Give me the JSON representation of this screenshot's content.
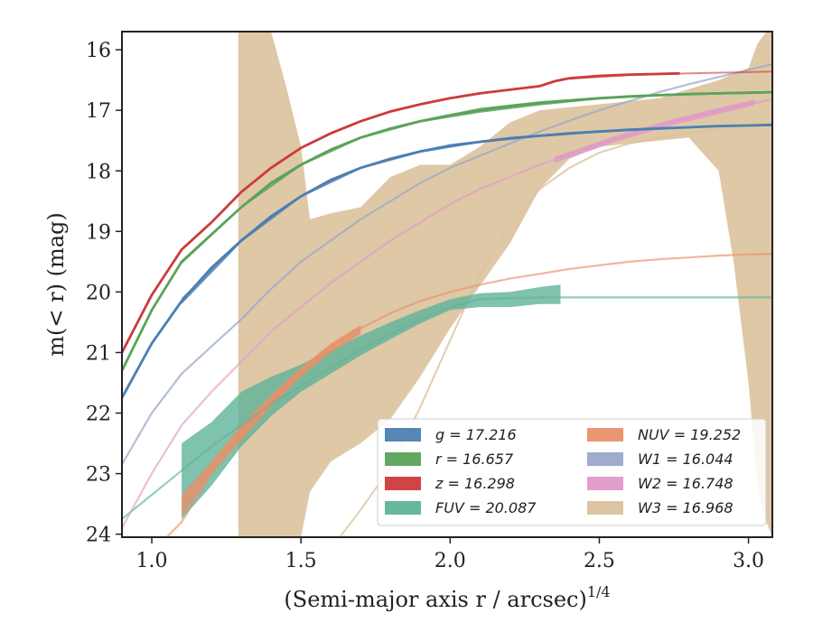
{
  "chart_data": {
    "type": "line",
    "xlabel": "(Semi-major axis r / arcsec)",
    "xlabel_exponent": "1/4",
    "ylabel": "m(< r) (mag)",
    "xlim": [
      0.9,
      3.08
    ],
    "ylim": [
      24.05,
      15.7
    ],
    "y_inverted": true,
    "x_ticks": [
      "1.0",
      "1.5",
      "2.0",
      "2.5",
      "3.0"
    ],
    "x_tick_values": [
      1.0,
      1.5,
      2.0,
      2.5,
      3.0
    ],
    "y_ticks": [
      "16",
      "17",
      "18",
      "19",
      "20",
      "21",
      "22",
      "23",
      "24"
    ],
    "y_tick_values": [
      16,
      17,
      18,
      19,
      20,
      21,
      22,
      23,
      24
    ],
    "grid": false,
    "legend_position": "lower-right",
    "series": [
      {
        "name": "g = 17.216",
        "color": "#4c7fb0",
        "data_x": [
          0.9,
          1.0,
          1.1,
          1.2,
          1.3,
          1.4,
          1.5,
          1.6,
          1.7,
          1.8,
          1.9,
          2.0,
          2.1,
          2.2,
          2.3,
          2.4,
          2.5,
          2.6,
          2.7,
          2.8,
          2.9,
          3.0,
          3.08
        ],
        "data_y": [
          21.75,
          20.85,
          20.15,
          19.6,
          19.15,
          18.75,
          18.42,
          18.15,
          17.95,
          17.8,
          17.68,
          17.58,
          17.52,
          17.46,
          17.42,
          17.38,
          17.35,
          17.32,
          17.3,
          17.28,
          17.26,
          17.25,
          17.24
        ],
        "band_x": [
          1.1,
          1.3,
          1.5,
          1.7,
          1.9,
          2.1,
          2.3,
          2.5,
          2.7,
          2.9,
          3.08
        ],
        "band_lo": [
          20.1,
          19.12,
          18.4,
          17.93,
          17.66,
          17.5,
          17.4,
          17.33,
          17.28,
          17.25,
          17.22
        ],
        "band_hi": [
          20.2,
          19.18,
          18.44,
          17.97,
          17.7,
          17.54,
          17.44,
          17.37,
          17.32,
          17.27,
          17.26
        ]
      },
      {
        "name": "r = 16.657",
        "color": "#5aa35a",
        "data_x": [
          0.9,
          1.0,
          1.1,
          1.2,
          1.3,
          1.4,
          1.5,
          1.6,
          1.7,
          1.8,
          1.9,
          2.0,
          2.1,
          2.2,
          2.3,
          2.4,
          2.5,
          2.6,
          2.7,
          2.8,
          2.9,
          3.0,
          3.08
        ],
        "data_y": [
          21.3,
          20.3,
          19.5,
          19.05,
          18.6,
          18.2,
          17.9,
          17.65,
          17.45,
          17.3,
          17.18,
          17.08,
          17.0,
          16.93,
          16.88,
          16.84,
          16.8,
          16.77,
          16.75,
          16.73,
          16.72,
          16.71,
          16.7
        ],
        "band_x": [
          1.1,
          1.3,
          1.5,
          1.7,
          1.9,
          2.1,
          2.3,
          2.5,
          2.7,
          2.9,
          3.08
        ],
        "band_lo": [
          19.5,
          18.58,
          17.88,
          17.43,
          17.16,
          16.96,
          16.85,
          16.78,
          16.73,
          16.7,
          16.68
        ],
        "band_hi": [
          19.54,
          18.62,
          17.92,
          17.47,
          17.2,
          17.04,
          16.92,
          16.82,
          16.77,
          16.74,
          16.72
        ]
      },
      {
        "name": "z = 16.298",
        "color": "#cc3b3b",
        "data_x": [
          0.9,
          1.0,
          1.1,
          1.2,
          1.3,
          1.4,
          1.5,
          1.6,
          1.7,
          1.8,
          1.9,
          2.0,
          2.1,
          2.2,
          2.3,
          2.35,
          2.4,
          2.5,
          2.6,
          2.7,
          2.77
        ],
        "data_y": [
          21.0,
          20.05,
          19.3,
          18.85,
          18.35,
          17.95,
          17.62,
          17.38,
          17.18,
          17.02,
          16.9,
          16.8,
          16.72,
          16.66,
          16.6,
          16.52,
          16.47,
          16.43,
          16.41,
          16.4,
          16.39
        ],
        "extension_x": [
          2.4,
          2.6,
          2.8,
          3.0,
          3.08
        ],
        "extension_y": [
          16.48,
          16.42,
          16.39,
          16.37,
          16.36
        ]
      },
      {
        "name": "FUV = 20.087",
        "color": "#5fb39a",
        "data_x": [
          0.9,
          1.0,
          1.1,
          1.2,
          1.3,
          1.4,
          1.5,
          1.6,
          1.7,
          1.8,
          1.9,
          2.0,
          2.1,
          2.2,
          2.3,
          2.4,
          2.6,
          2.8,
          3.0,
          3.08
        ],
        "data_y": [
          23.75,
          23.35,
          22.95,
          22.55,
          22.2,
          21.85,
          21.55,
          21.25,
          20.95,
          20.7,
          20.45,
          20.25,
          20.12,
          20.1,
          20.09,
          20.09,
          20.09,
          20.09,
          20.09,
          20.09
        ],
        "band_x": [
          1.1,
          1.2,
          1.3,
          1.4,
          1.5,
          1.6,
          1.7,
          1.8,
          1.9,
          2.0,
          2.1,
          2.2,
          2.3,
          2.37
        ],
        "band_lo": [
          23.75,
          23.2,
          22.55,
          22.05,
          21.65,
          21.35,
          21.05,
          20.78,
          20.52,
          20.3,
          20.25,
          20.25,
          20.2,
          20.2
        ],
        "band_hi": [
          22.5,
          22.15,
          21.65,
          21.4,
          21.2,
          20.95,
          20.72,
          20.5,
          20.3,
          20.12,
          20.02,
          20.0,
          19.92,
          19.88
        ]
      },
      {
        "name": "NUV = 19.252",
        "color": "#e8906a",
        "data_x": [
          1.05,
          1.1,
          1.2,
          1.3,
          1.4,
          1.5,
          1.6,
          1.7,
          1.8,
          1.9,
          2.0,
          2.1,
          2.2,
          2.3,
          2.4,
          2.5,
          2.6,
          2.7,
          2.8,
          2.9,
          3.0,
          3.08
        ],
        "data_y": [
          24.05,
          23.8,
          23.0,
          22.35,
          21.8,
          21.3,
          20.9,
          20.6,
          20.35,
          20.15,
          20.0,
          19.88,
          19.78,
          19.7,
          19.62,
          19.56,
          19.5,
          19.46,
          19.43,
          19.4,
          19.38,
          19.37
        ],
        "band_x": [
          1.1,
          1.2,
          1.3,
          1.4,
          1.5,
          1.6,
          1.7
        ],
        "band_lo": [
          23.7,
          23.0,
          22.45,
          21.9,
          21.4,
          21.0,
          20.7
        ],
        "band_hi": [
          23.35,
          22.8,
          22.2,
          21.7,
          21.25,
          20.85,
          20.55
        ]
      },
      {
        "name": "W1 = 16.044",
        "color": "#9aa8c8",
        "data_x": [
          0.9,
          1.0,
          1.1,
          1.2,
          1.3,
          1.4,
          1.5,
          1.6,
          1.7,
          1.8,
          1.9,
          2.0,
          2.1,
          2.2,
          2.3,
          2.4,
          2.5,
          2.6,
          2.7,
          2.8,
          2.9,
          3.0,
          3.08
        ],
        "data_y": [
          22.85,
          22.0,
          21.35,
          20.9,
          20.45,
          19.95,
          19.5,
          19.15,
          18.8,
          18.5,
          18.2,
          17.95,
          17.75,
          17.55,
          17.35,
          17.17,
          17.0,
          16.85,
          16.7,
          16.57,
          16.45,
          16.33,
          16.24
        ]
      },
      {
        "name": "W2 = 16.748",
        "color": "#e09ac8",
        "data_x": [
          0.9,
          1.0,
          1.1,
          1.2,
          1.3,
          1.4,
          1.5,
          1.6,
          1.7,
          1.8,
          1.9,
          2.0,
          2.1,
          2.2,
          2.3,
          2.4,
          2.5,
          2.6,
          2.7,
          2.8,
          2.9,
          3.0,
          3.08
        ],
        "data_y": [
          23.9,
          23.0,
          22.2,
          21.65,
          21.15,
          20.65,
          20.25,
          19.85,
          19.5,
          19.15,
          18.85,
          18.55,
          18.3,
          18.1,
          17.9,
          17.72,
          17.55,
          17.4,
          17.25,
          17.12,
          17.0,
          16.9,
          16.82
        ],
        "band_x": [
          2.35,
          2.45,
          2.55,
          2.65,
          2.75,
          2.85,
          2.95,
          3.02
        ],
        "band_lo": [
          17.87,
          17.7,
          17.53,
          17.38,
          17.24,
          17.12,
          17.0,
          16.92
        ],
        "band_hi": [
          17.77,
          17.6,
          17.43,
          17.28,
          17.14,
          17.02,
          16.9,
          16.82
        ]
      },
      {
        "name": "W3 = 16.968",
        "color": "#dcc29c",
        "band_x": [
          1.29,
          1.35,
          1.4,
          1.45,
          1.5,
          1.53,
          1.6,
          1.7,
          1.8,
          1.9,
          2.0,
          2.1,
          2.2,
          2.3,
          2.4,
          2.5,
          2.6,
          2.7,
          2.8,
          2.9,
          2.95,
          3.0,
          3.03,
          3.06,
          3.08
        ],
        "band_lo": [
          24.05,
          24.05,
          24.05,
          24.05,
          24.05,
          23.3,
          22.8,
          22.5,
          22.1,
          21.4,
          20.6,
          19.9,
          19.2,
          18.3,
          17.8,
          17.6,
          17.55,
          17.5,
          17.45,
          18.0,
          19.5,
          21.5,
          23.2,
          23.8,
          24.05
        ],
        "band_hi": [
          15.7,
          15.7,
          15.7,
          16.6,
          17.6,
          18.8,
          18.7,
          18.6,
          18.1,
          17.9,
          17.9,
          17.6,
          17.2,
          17.0,
          16.95,
          16.9,
          16.85,
          16.8,
          16.65,
          16.5,
          16.4,
          16.3,
          15.9,
          15.7,
          15.7
        ],
        "line_x": [
          1.63,
          1.7,
          1.8,
          1.9,
          2.0,
          2.1,
          2.2,
          2.3,
          2.4,
          2.5,
          2.6,
          2.7,
          2.8,
          2.9,
          3.0,
          3.08
        ],
        "line_y": [
          24.05,
          23.6,
          22.9,
          21.9,
          20.8,
          19.7,
          18.9,
          18.3,
          17.95,
          17.7,
          17.55,
          17.45,
          17.38,
          17.3,
          17.25,
          17.2
        ]
      }
    ]
  }
}
